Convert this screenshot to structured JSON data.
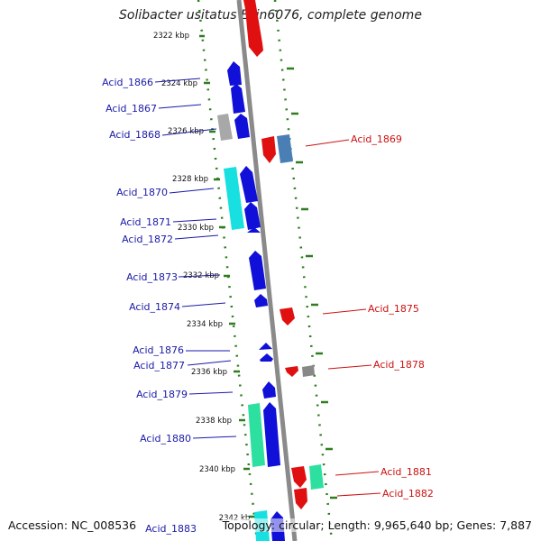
{
  "title": "Solibacter usitatus Ellin6076, complete genome",
  "accession_text": "Accession: NC_008536",
  "topology_text": "Topology: circular; Length: 9,965,640 bp; Genes: 7,887",
  "colors": {
    "forward_gene": "#1010d8",
    "reverse_gene": "#e01010",
    "forward_label": "#1a1aa8",
    "reverse_label": "#cc1111",
    "backbone": "#8a8a8a",
    "ruler_tick": "#2e7d1f",
    "gray_feature": "#a8a8a8",
    "cyan_feature": "#19e0e0",
    "green_feature": "#2ee0a0",
    "steel_feature": "#4a7fb5"
  },
  "ruler_labels": [
    "2322 kbp",
    "2324 kbp",
    "2326 kbp",
    "2328 kbp",
    "2330 kbp",
    "2332 kbp",
    "2334 kbp",
    "2336 kbp",
    "2338 kbp",
    "2340 kbp",
    "2342 kb"
  ],
  "forward_genes": [
    "Acid_1866",
    "Acid_1867",
    "Acid_1868",
    "Acid_1870",
    "Acid_1871",
    "Acid_1872",
    "Acid_1873",
    "Acid_1874",
    "Acid_1876",
    "Acid_1877",
    "Acid_1879",
    "Acid_1880",
    "Acid_1883"
  ],
  "reverse_genes": [
    "Acid_1869",
    "Acid_1875",
    "Acid_1878",
    "Acid_1881",
    "Acid_1882"
  ]
}
